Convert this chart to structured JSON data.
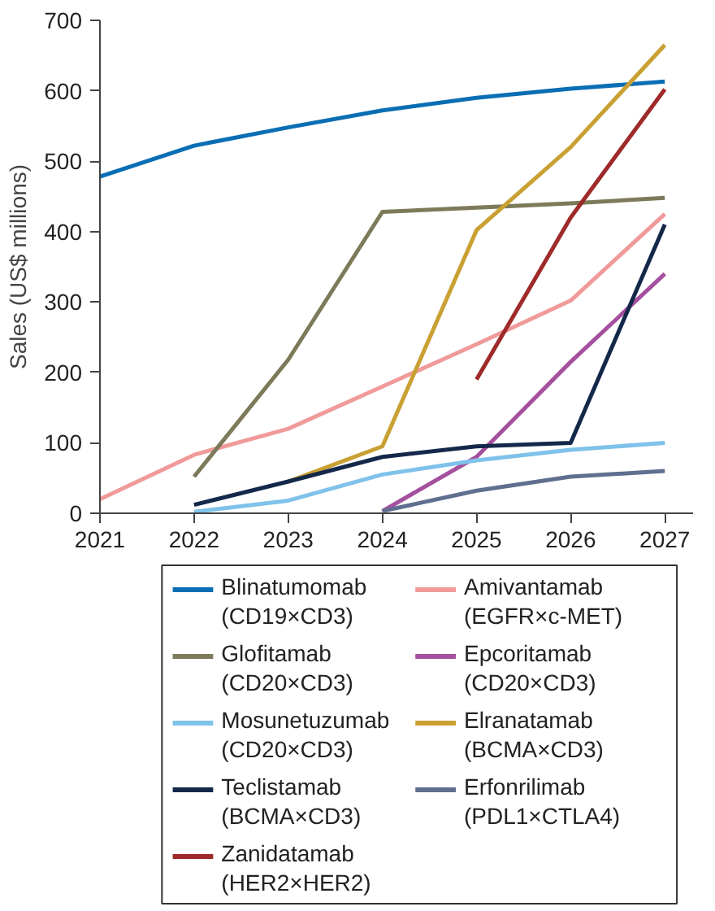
{
  "chart_data": {
    "type": "line",
    "ylabel": "Sales (US$ millions)",
    "x": [
      2021,
      2022,
      2023,
      2024,
      2025,
      2026,
      2027
    ],
    "xlim": [
      2021,
      2027.3
    ],
    "xticks": [
      2021,
      2022,
      2023,
      2024,
      2025,
      2026,
      2027
    ],
    "ylim": [
      0,
      700
    ],
    "yticks": [
      0,
      100,
      200,
      300,
      400,
      500,
      600,
      700
    ],
    "grid": false,
    "legend": "bottom",
    "line_style": "solid",
    "series": [
      {
        "name": "Blinatumomab (CD19×CD3)",
        "color": "#0a6eb4",
        "values": [
          478,
          522,
          548,
          572,
          590,
          603,
          613
        ]
      },
      {
        "name": "Amivantamab (EGFR×c-MET)",
        "color": "#f09a9a",
        "values": [
          20,
          83,
          120,
          180,
          240,
          302,
          425
        ]
      },
      {
        "name": "Glofitamab (CD20×CD3)",
        "color": "#7d7a5a",
        "values": [
          null,
          52,
          218,
          428,
          434,
          440,
          448
        ]
      },
      {
        "name": "Epcoritamab (CD20×CD3)",
        "color": "#a4509e",
        "values": [
          null,
          null,
          null,
          3,
          80,
          215,
          340
        ]
      },
      {
        "name": "Mosunetuzumab (CD20×CD3)",
        "color": "#7fc2ea",
        "values": [
          null,
          2,
          18,
          55,
          75,
          90,
          100
        ]
      },
      {
        "name": "Elranatamab (BCMA×CD3)",
        "color": "#c9a032",
        "values": [
          null,
          null,
          45,
          95,
          402,
          520,
          665
        ]
      },
      {
        "name": "Teclistamab (BCMA×CD3)",
        "color": "#14284a",
        "values": [
          null,
          12,
          45,
          80,
          95,
          100,
          410
        ]
      },
      {
        "name": "Erfonrilimab (PDL1×CTLA4)",
        "color": "#5f6f8f",
        "values": [
          null,
          null,
          null,
          3,
          32,
          52,
          60
        ]
      },
      {
        "name": "Zanidatamab (HER2×HER2)",
        "color": "#9e2a2a",
        "values": [
          null,
          null,
          null,
          null,
          190,
          420,
          602
        ]
      }
    ]
  }
}
